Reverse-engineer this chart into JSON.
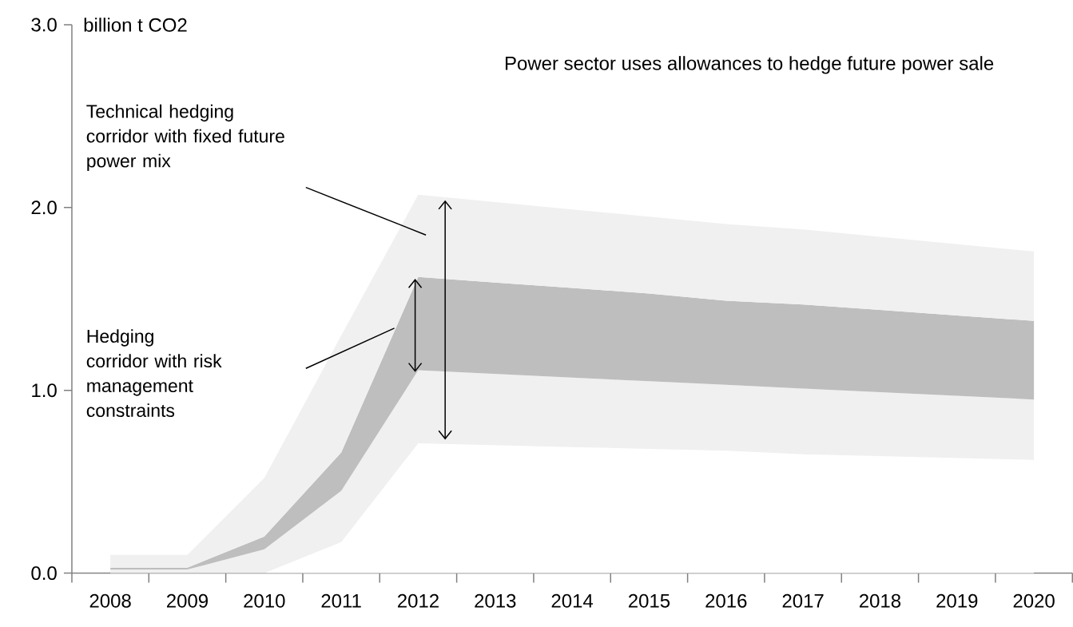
{
  "chart_data": {
    "type": "area",
    "stacked": true,
    "ylabel": "billion t CO2",
    "categories": [
      "2008",
      "2009",
      "2010",
      "2011",
      "2012",
      "2013",
      "2014",
      "2015",
      "2016",
      "2017",
      "2018",
      "2019",
      "2020"
    ],
    "series": [
      {
        "color": "#ffffff",
        "values": [
          0.0,
          0.0,
          0.0,
          0.17,
          0.71,
          0.7,
          0.69,
          0.68,
          0.67,
          0.65,
          0.64,
          0.63,
          0.62
        ]
      },
      {
        "color": "#f0f0f0",
        "values": [
          0.02,
          0.02,
          0.13,
          0.28,
          0.4,
          0.39,
          0.38,
          0.37,
          0.36,
          0.36,
          0.35,
          0.34,
          0.33
        ]
      },
      {
        "color": "#bebebe",
        "values": [
          0.01,
          0.01,
          0.07,
          0.21,
          0.51,
          0.5,
          0.49,
          0.48,
          0.46,
          0.46,
          0.45,
          0.44,
          0.43
        ]
      },
      {
        "color": "#f0f0f0",
        "values": [
          0.07,
          0.07,
          0.32,
          0.64,
          0.45,
          0.44,
          0.43,
          0.42,
          0.42,
          0.41,
          0.4,
          0.39,
          0.38
        ]
      }
    ],
    "ylim": [
      0,
      3
    ],
    "yticks": [
      {
        "value": 0,
        "label": "0.0"
      },
      {
        "value": 1,
        "label": "1.0"
      },
      {
        "value": 2,
        "label": "2.0"
      },
      {
        "value": 3,
        "label": "3.0"
      }
    ],
    "grid": false,
    "annotations": [
      "Power sector uses allowances to hedge future power sale",
      "Technical hedging corridor with fixed future power mix",
      "Hedging corridor with risk management constraints"
    ]
  }
}
